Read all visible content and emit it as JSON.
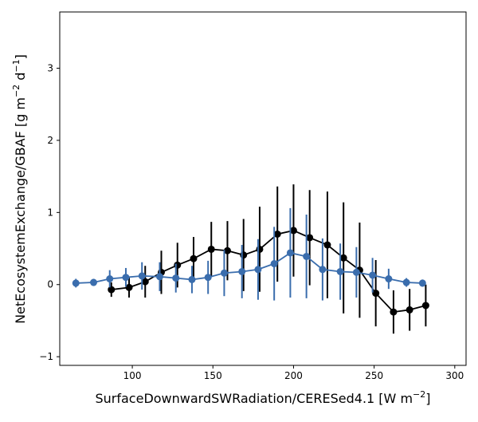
{
  "chart_data": {
    "type": "line",
    "title": "",
    "xlabel": "SurfaceDownwardSWRadiation/CERESed4.1 [W m",
    "xlabel_sup": "−2",
    "xlabel_end": "]",
    "ylabel": "NetEcosystemExchange/GBAF [g m",
    "ylabel_sup1": "−2",
    "ylabel_mid": " d",
    "ylabel_sup2": "−1",
    "ylabel_end": "]",
    "xlim": [
      55,
      307
    ],
    "ylim": [
      -1.12,
      3.78
    ],
    "x_ticks": [
      100,
      150,
      200,
      250,
      300
    ],
    "x_tick_labels": [
      "100",
      "150",
      "200",
      "250",
      "300"
    ],
    "y_ticks": [
      -1,
      0,
      1,
      2,
      3
    ],
    "y_tick_labels": [
      "−1",
      "0",
      "1",
      "2",
      "3"
    ],
    "grid": false,
    "legend": "none",
    "series": [
      {
        "color": "#000000",
        "x": [
          87,
          98,
          108,
          118,
          128,
          138,
          149,
          159,
          169,
          179,
          190,
          200,
          210,
          221,
          231,
          241,
          251,
          262,
          272,
          282
        ],
        "y": [
          -0.07,
          -0.04,
          0.04,
          0.17,
          0.27,
          0.36,
          0.49,
          0.47,
          0.41,
          0.49,
          0.7,
          0.75,
          0.65,
          0.55,
          0.37,
          0.2,
          -0.12,
          -0.38,
          -0.35,
          -0.29
        ],
        "err": [
          0.1,
          0.14,
          0.22,
          0.3,
          0.31,
          0.3,
          0.38,
          0.41,
          0.5,
          0.59,
          0.66,
          0.64,
          0.66,
          0.74,
          0.77,
          0.66,
          0.46,
          0.3,
          0.29,
          0.29
        ]
      },
      {
        "color": "#3a6dad",
        "x": [
          65,
          76,
          86,
          96,
          106,
          117,
          127,
          137,
          147,
          157,
          168,
          178,
          188,
          198,
          208,
          218,
          229,
          239,
          249,
          259,
          270,
          280
        ],
        "y": [
          0.02,
          0.03,
          0.08,
          0.1,
          0.12,
          0.11,
          0.09,
          0.07,
          0.1,
          0.16,
          0.18,
          0.21,
          0.29,
          0.44,
          0.39,
          0.21,
          0.18,
          0.17,
          0.13,
          0.08,
          0.03,
          0.02
        ],
        "err": [
          0.06,
          0.05,
          0.12,
          0.13,
          0.19,
          0.2,
          0.2,
          0.19,
          0.23,
          0.32,
          0.37,
          0.42,
          0.51,
          0.62,
          0.58,
          0.43,
          0.39,
          0.35,
          0.24,
          0.14,
          0.06,
          0.05
        ]
      }
    ]
  }
}
